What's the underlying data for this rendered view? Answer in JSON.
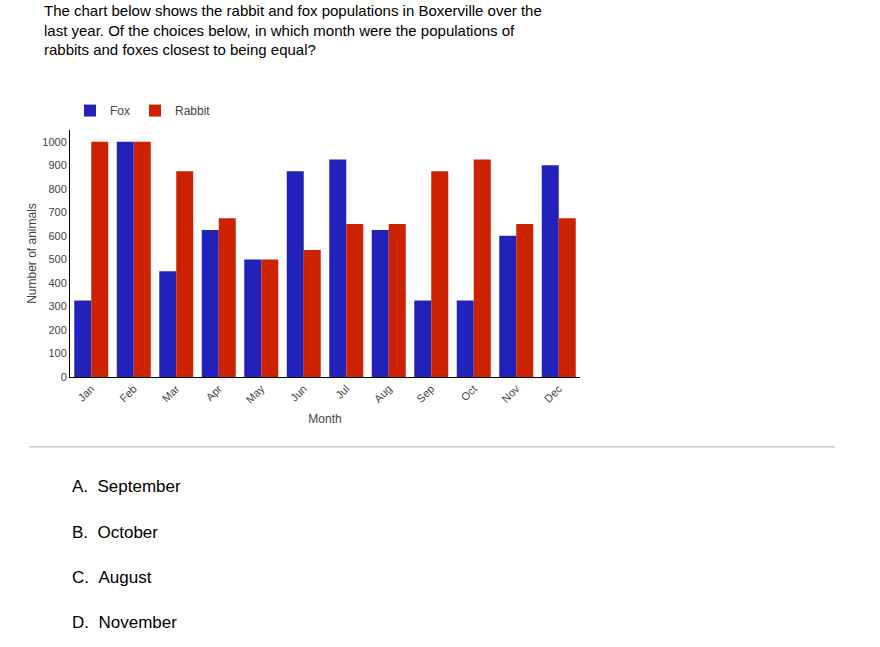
{
  "chart_data": {
    "type": "bar",
    "title": "The chart below shows the rabbit and fox populations in Boxerville over the\nlast year. Of the choices below, in which month were the populations of\nrabbits and foxes closest to being equal?",
    "categories": [
      "Jan",
      "Feb",
      "Mar",
      "Apr",
      "May",
      "Jun",
      "Jul",
      "Aug",
      "Sep",
      "Oct",
      "Nov",
      "Dec"
    ],
    "series": [
      {
        "name": "Fox",
        "color": "#2222bb",
        "values": [
          325,
          1000,
          450,
          625,
          500,
          875,
          925,
          625,
          325,
          325,
          600,
          900
        ]
      },
      {
        "name": "Rabbit",
        "color": "#cc2200",
        "values": [
          1000,
          1000,
          875,
          675,
          500,
          540,
          650,
          650,
          875,
          925,
          650,
          675
        ]
      }
    ],
    "xlabel": "Month",
    "ylabel": "Number of animals",
    "ylim": [
      0,
      1050
    ],
    "yticks": [
      0,
      100,
      200,
      300,
      400,
      500,
      600,
      700,
      800,
      900,
      1000
    ],
    "grid": false,
    "legend": "top",
    "annotations": [
      "A.  September",
      "B.  October",
      "C.  August",
      "D.  November"
    ]
  }
}
